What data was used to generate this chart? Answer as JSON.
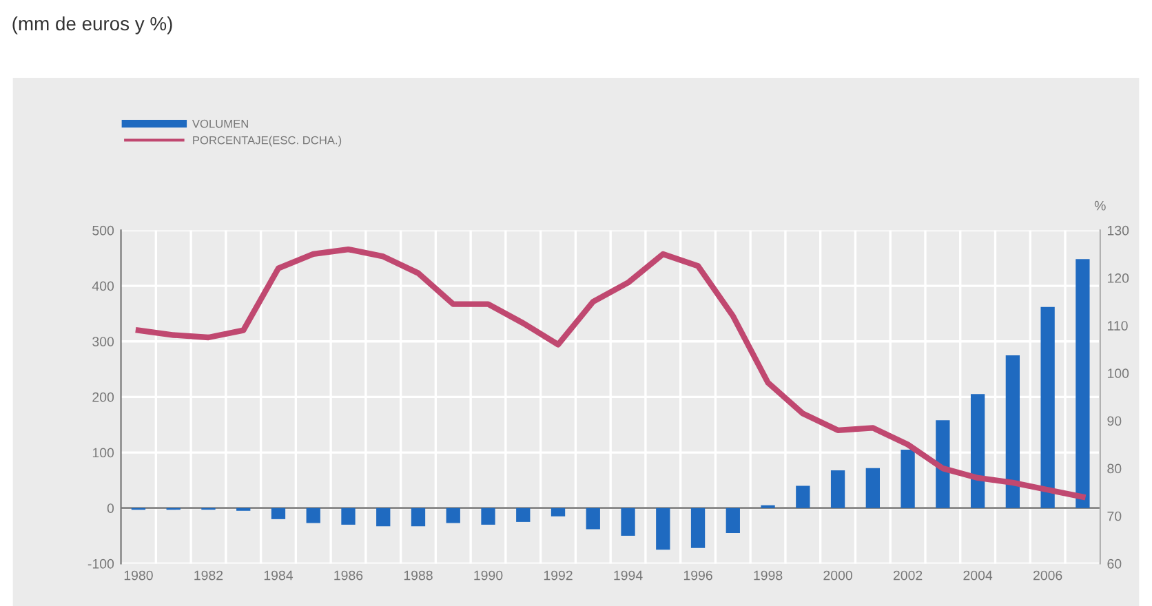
{
  "chart_data": {
    "type": "bar",
    "title": "(mm de euros y %)",
    "y2label": "%",
    "categories": [
      "1980",
      null,
      "1982",
      null,
      "1984",
      null,
      "1986",
      null,
      "1988",
      null,
      "1990",
      null,
      "1992",
      null,
      "1994",
      null,
      "1996",
      null,
      "1998",
      null,
      "2000",
      null,
      "2002",
      null,
      "2004",
      null,
      "2006",
      null
    ],
    "series": [
      {
        "name": "VOLUMEN",
        "color": "#1f6ac0",
        "values": [
          -3,
          -3,
          -3,
          -5,
          -20,
          -27,
          -30,
          -33,
          -33,
          -27,
          -30,
          -25,
          -15,
          -38,
          -50,
          -75,
          -72,
          -45,
          5,
          40,
          68,
          72,
          105,
          158,
          205,
          275,
          362,
          448
        ]
      },
      {
        "name": "PORCENTAJE(ESC. DCHA.)",
        "color": "#c04870",
        "type": "line",
        "axis": "y2",
        "values": [
          109,
          108,
          107.5,
          109,
          122,
          125,
          126,
          124.5,
          121,
          114.5,
          114.5,
          110.5,
          106,
          115,
          119,
          125,
          122.5,
          112,
          98,
          91.5,
          88,
          88.5,
          85,
          80,
          78,
          77,
          75.5,
          74
        ]
      }
    ],
    "ylim": [
      -100,
      500
    ],
    "yticks": [
      -100,
      0,
      100,
      200,
      300,
      400,
      500
    ],
    "y2lim": [
      60,
      130
    ],
    "y2ticks": [
      60,
      70,
      80,
      90,
      100,
      110,
      120,
      130
    ],
    "grid": true,
    "legend": "top left"
  }
}
